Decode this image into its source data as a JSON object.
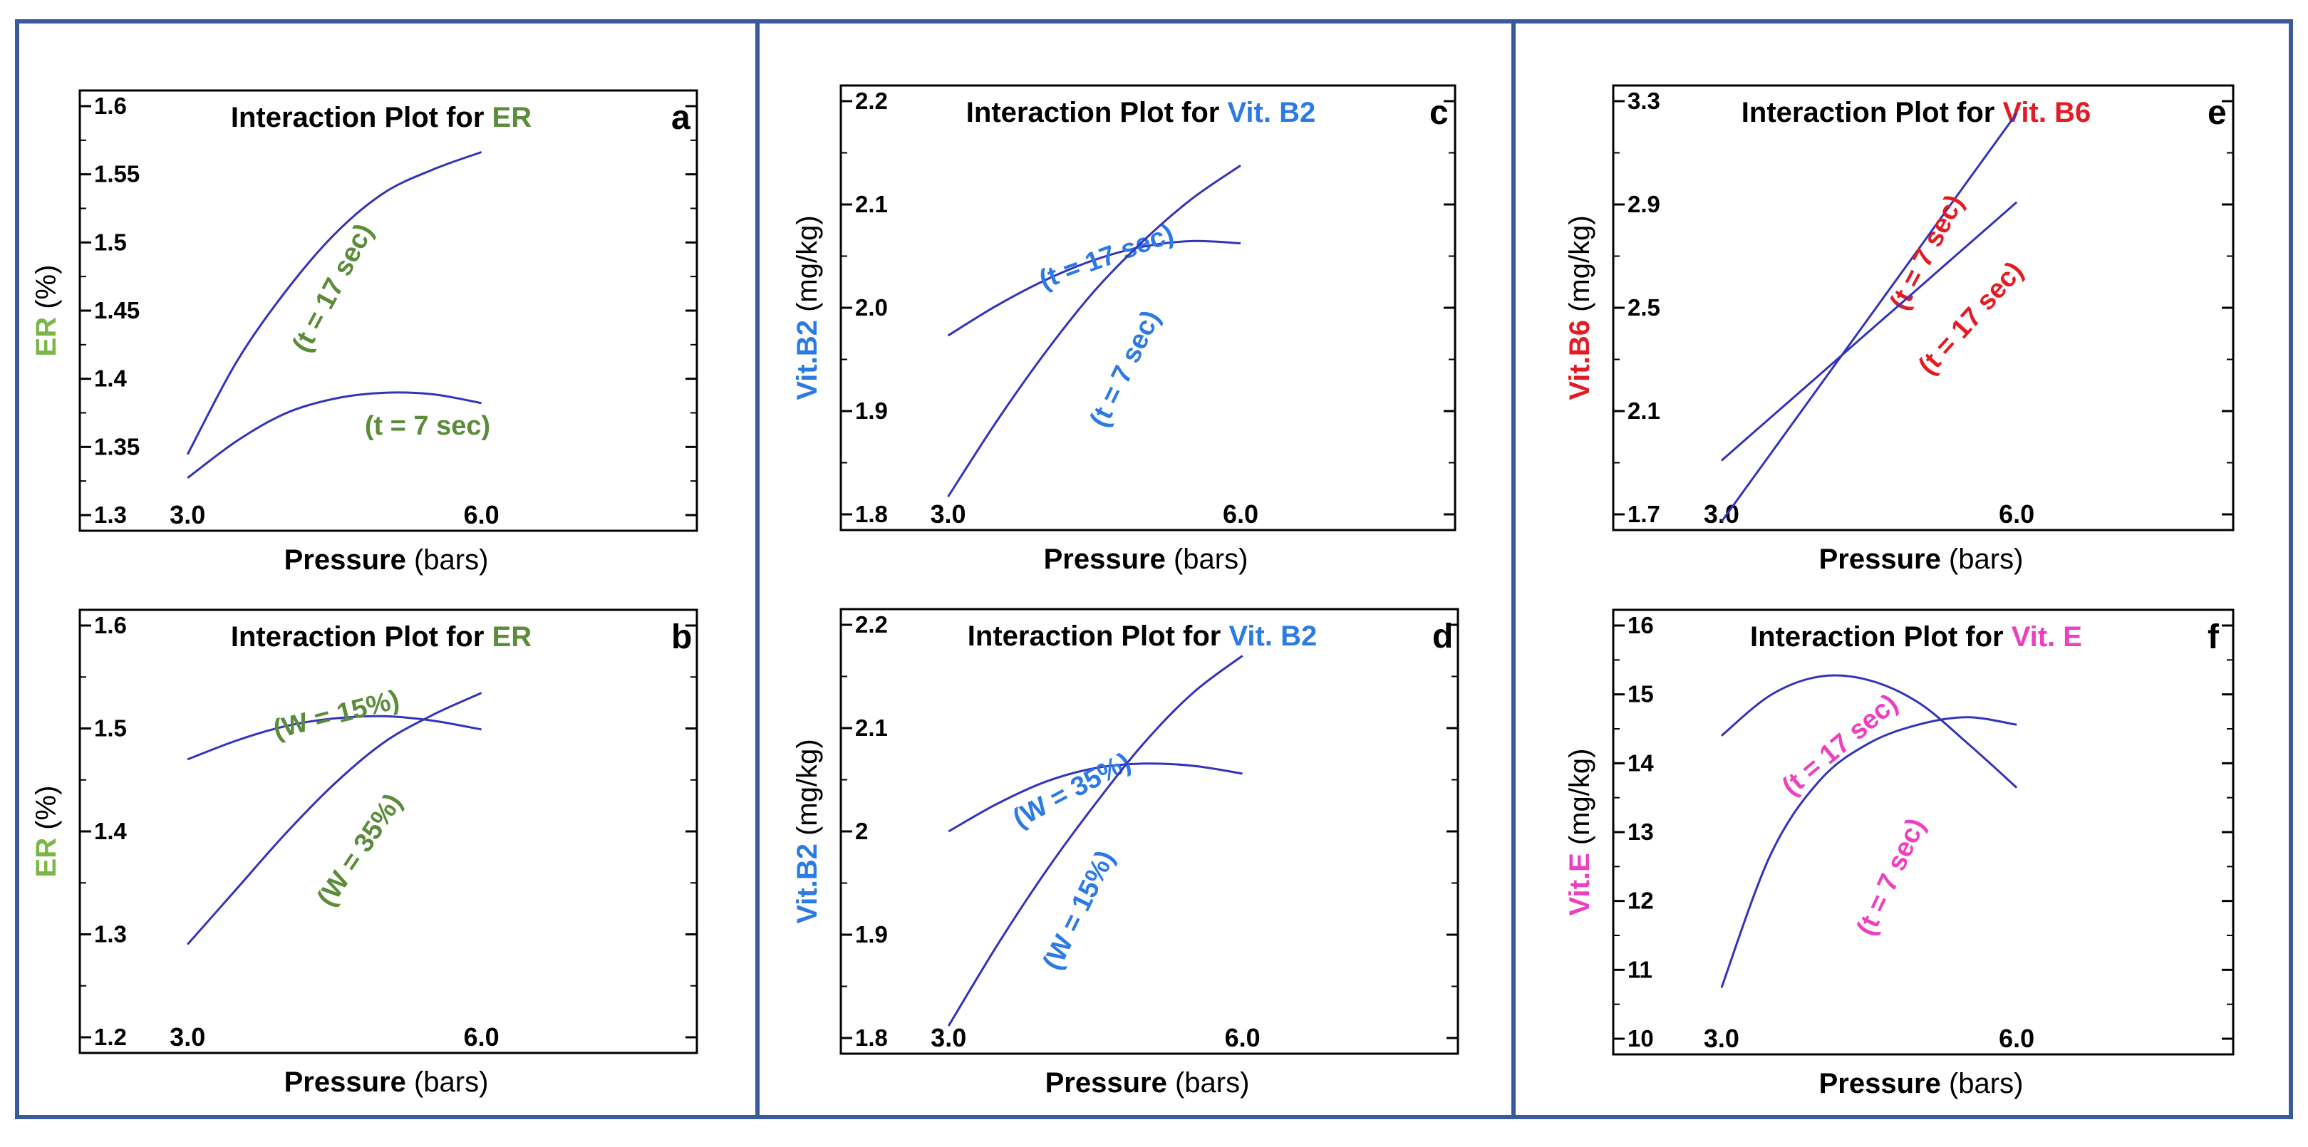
{
  "figure": {
    "colors": {
      "frame": "#3a5a9c",
      "curve": "#3333bb",
      "axis": "#000000",
      "green": "#5b8c3a",
      "green_label": "#7ab648",
      "blue": "#2c7be5",
      "red": "#e31b23",
      "magenta": "#ee3fbf"
    }
  },
  "chart_data": [
    {
      "id": "a",
      "type": "line",
      "title_prefix": "Interaction Plot for ",
      "title_highlight": "ER",
      "highlight_color": "#5b8c3a",
      "panel_letter": "a",
      "ylabel_main": "ER",
      "ylabel_unit": " (%)",
      "ylabel_color": "#7ab648",
      "xlabel_main": "Pressure",
      "xlabel_unit": " (bars)",
      "xlim": [
        1.9,
        8.2
      ],
      "ylim": [
        1.3,
        1.6
      ],
      "x_ticks": [
        "3.0",
        "6.0"
      ],
      "x_tick_values": [
        3.0,
        6.0
      ],
      "y_ticks": [
        "1.6",
        "1.55",
        "1.5",
        "1.45",
        "1.4",
        "1.35",
        "1.3"
      ],
      "y_tick_values": [
        1.6,
        1.55,
        1.5,
        1.45,
        1.4,
        1.35,
        1.3
      ],
      "series": [
        {
          "name": "(t = 17 sec)",
          "label_color": "#5b8c3a",
          "x": [
            3.0,
            3.5,
            4.0,
            4.5,
            5.0,
            5.5,
            6.0
          ],
          "y": [
            1.352,
            1.415,
            1.463,
            1.502,
            1.53,
            1.546,
            1.558
          ]
        },
        {
          "name": "(t = 7 sec)",
          "label_color": "#5b8c3a",
          "x": [
            3.0,
            3.5,
            4.0,
            4.5,
            5.0,
            5.5,
            6.0
          ],
          "y": [
            1.336,
            1.361,
            1.38,
            1.39,
            1.394,
            1.393,
            1.387
          ]
        }
      ]
    },
    {
      "id": "b",
      "type": "line",
      "title_prefix": "Interaction Plot for ",
      "title_highlight": "ER",
      "highlight_color": "#5b8c3a",
      "panel_letter": "b",
      "ylabel_main": "ER",
      "ylabel_unit": " (%)",
      "ylabel_color": "#7ab648",
      "xlabel_main": "Pressure",
      "xlabel_unit": " (bars)",
      "xlim": [
        1.9,
        8.2
      ],
      "ylim": [
        1.2,
        1.6
      ],
      "x_ticks": [
        "3.0",
        "6.0"
      ],
      "x_tick_values": [
        3.0,
        6.0
      ],
      "y_ticks": [
        "1.6",
        "1.5",
        "1.4",
        "1.3",
        "1.2"
      ],
      "y_tick_values": [
        1.6,
        1.5,
        1.4,
        1.3,
        1.2
      ],
      "series": [
        {
          "name": "(W = 15%)",
          "label_color": "#5b8c3a",
          "x": [
            3.0,
            3.5,
            4.0,
            4.5,
            5.0,
            5.5,
            6.0
          ],
          "y": [
            1.465,
            1.482,
            1.495,
            1.502,
            1.504,
            1.5,
            1.492
          ]
        },
        {
          "name": "(W = 35%)",
          "label_color": "#5b8c3a",
          "x": [
            3.0,
            3.5,
            4.0,
            4.5,
            5.0,
            5.5,
            6.0
          ],
          "y": [
            1.298,
            1.348,
            1.398,
            1.443,
            1.48,
            1.505,
            1.525
          ]
        }
      ]
    },
    {
      "id": "c",
      "type": "line",
      "title_prefix": "Interaction Plot for ",
      "title_highlight": "Vit. B2",
      "highlight_color": "#2c7be5",
      "panel_letter": "c",
      "ylabel_main": "Vit.B2",
      "ylabel_unit": " (mg/kg)",
      "ylabel_color": "#2c7be5",
      "xlabel_main": "Pressure",
      "xlabel_unit": " (bars)",
      "xlim": [
        1.9,
        8.2
      ],
      "ylim": [
        1.8,
        2.2
      ],
      "x_ticks": [
        "3.0",
        "6.0"
      ],
      "x_tick_values": [
        3.0,
        6.0
      ],
      "y_ticks": [
        "2.2",
        "2.1",
        "2.0",
        "1.9",
        "1.8"
      ],
      "y_tick_values": [
        2.2,
        2.1,
        2.0,
        1.9,
        1.8
      ],
      "series": [
        {
          "name": "(t = 17 sec)",
          "label_color": "#2c7be5",
          "x": [
            3.0,
            3.5,
            4.0,
            4.5,
            5.0,
            5.5,
            6.0
          ],
          "y": [
            1.975,
            2.002,
            2.025,
            2.043,
            2.055,
            2.06,
            2.058
          ]
        },
        {
          "name": "(t = 7 sec)",
          "label_color": "#2c7be5",
          "x": [
            3.0,
            3.5,
            4.0,
            4.5,
            5.0,
            5.5,
            6.0
          ],
          "y": [
            1.83,
            1.898,
            1.96,
            2.015,
            2.06,
            2.098,
            2.128
          ]
        }
      ]
    },
    {
      "id": "d",
      "type": "line",
      "title_prefix": "Interaction Plot for ",
      "title_highlight": "Vit. B2",
      "highlight_color": "#2c7be5",
      "panel_letter": "d",
      "ylabel_main": "Vit.B2",
      "ylabel_unit": " (mg/kg)",
      "ylabel_color": "#2c7be5",
      "xlabel_main": "Pressure",
      "xlabel_unit": " (bars)",
      "xlim": [
        1.9,
        8.2
      ],
      "ylim": [
        1.8,
        2.2
      ],
      "x_ticks": [
        "3.0",
        "6.0"
      ],
      "x_tick_values": [
        3.0,
        6.0
      ],
      "y_ticks": [
        "2.2",
        "2.1",
        "2",
        "1.9",
        "1.8"
      ],
      "y_tick_values": [
        2.2,
        2.1,
        2.0,
        1.9,
        1.8
      ],
      "series": [
        {
          "name": "(W = 35%)",
          "label_color": "#2c7be5",
          "x": [
            3.0,
            3.5,
            4.0,
            4.5,
            5.0,
            5.5,
            6.0
          ],
          "y": [
            2.0,
            2.025,
            2.045,
            2.057,
            2.061,
            2.059,
            2.052
          ]
        },
        {
          "name": "(W = 15%)",
          "label_color": "#2c7be5",
          "x": [
            3.0,
            3.5,
            4.0,
            4.5,
            5.0,
            5.5,
            6.0
          ],
          "y": [
            1.825,
            1.898,
            1.965,
            2.025,
            2.08,
            2.125,
            2.158
          ]
        }
      ]
    },
    {
      "id": "e",
      "type": "line",
      "title_prefix": "Interaction Plot for ",
      "title_highlight": "Vit. B6",
      "highlight_color": "#e31b23",
      "panel_letter": "e",
      "ylabel_main": "Vit.B6",
      "ylabel_unit": " (mg/kg)",
      "ylabel_color": "#e31b23",
      "xlabel_main": "Pressure",
      "xlabel_unit": " (bars)",
      "xlim": [
        1.9,
        8.2
      ],
      "ylim": [
        1.7,
        3.3
      ],
      "x_ticks": [
        "3.0",
        "6.0"
      ],
      "x_tick_values": [
        3.0,
        6.0
      ],
      "y_ticks": [
        "3.3",
        "2.9",
        "2.5",
        "2.1",
        "1.7"
      ],
      "y_tick_values": [
        3.3,
        2.9,
        2.5,
        2.1,
        1.7
      ],
      "series": [
        {
          "name": "(t = 7 sec)",
          "label_color": "#e31b23",
          "x": [
            3.0,
            3.5,
            4.0,
            4.5,
            5.0,
            5.5,
            6.0
          ],
          "y": [
            1.73,
            1.975,
            2.22,
            2.465,
            2.71,
            2.955,
            3.2
          ]
        },
        {
          "name": "(t = 17 sec)",
          "label_color": "#e31b23",
          "x": [
            3.0,
            3.5,
            4.0,
            4.5,
            5.0,
            5.5,
            6.0
          ],
          "y": [
            1.95,
            2.105,
            2.26,
            2.415,
            2.57,
            2.725,
            2.88
          ]
        }
      ]
    },
    {
      "id": "f",
      "type": "line",
      "title_prefix": "Interaction Plot for ",
      "title_highlight": "Vit. E",
      "highlight_color": "#ee3fbf",
      "panel_letter": "f",
      "ylabel_main": "Vit.E",
      "ylabel_unit": " (mg/kg)",
      "ylabel_color": "#ee3fbf",
      "xlabel_main": "Pressure",
      "xlabel_unit": " (bars)",
      "xlim": [
        1.9,
        8.2
      ],
      "ylim": [
        10,
        16
      ],
      "x_ticks": [
        "3.0",
        "6.0"
      ],
      "x_tick_values": [
        3.0,
        6.0
      ],
      "y_ticks": [
        "16",
        "15",
        "14",
        "13",
        "12",
        "11",
        "10"
      ],
      "y_tick_values": [
        16,
        15,
        14,
        13,
        12,
        11,
        10
      ],
      "series": [
        {
          "name": "(t = 17 sec)",
          "label_color": "#ee3fbf",
          "x": [
            3.0,
            3.5,
            4.0,
            4.5,
            5.0,
            5.5,
            6.0
          ],
          "y": [
            14.3,
            14.85,
            15.1,
            15.05,
            14.75,
            14.2,
            13.6
          ]
        },
        {
          "name": "(t = 7 sec)",
          "label_color": "#ee3fbf",
          "x": [
            3.0,
            3.5,
            4.0,
            4.5,
            5.0,
            5.5,
            6.0
          ],
          "y": [
            10.9,
            12.7,
            13.7,
            14.2,
            14.45,
            14.55,
            14.45
          ]
        }
      ]
    }
  ]
}
